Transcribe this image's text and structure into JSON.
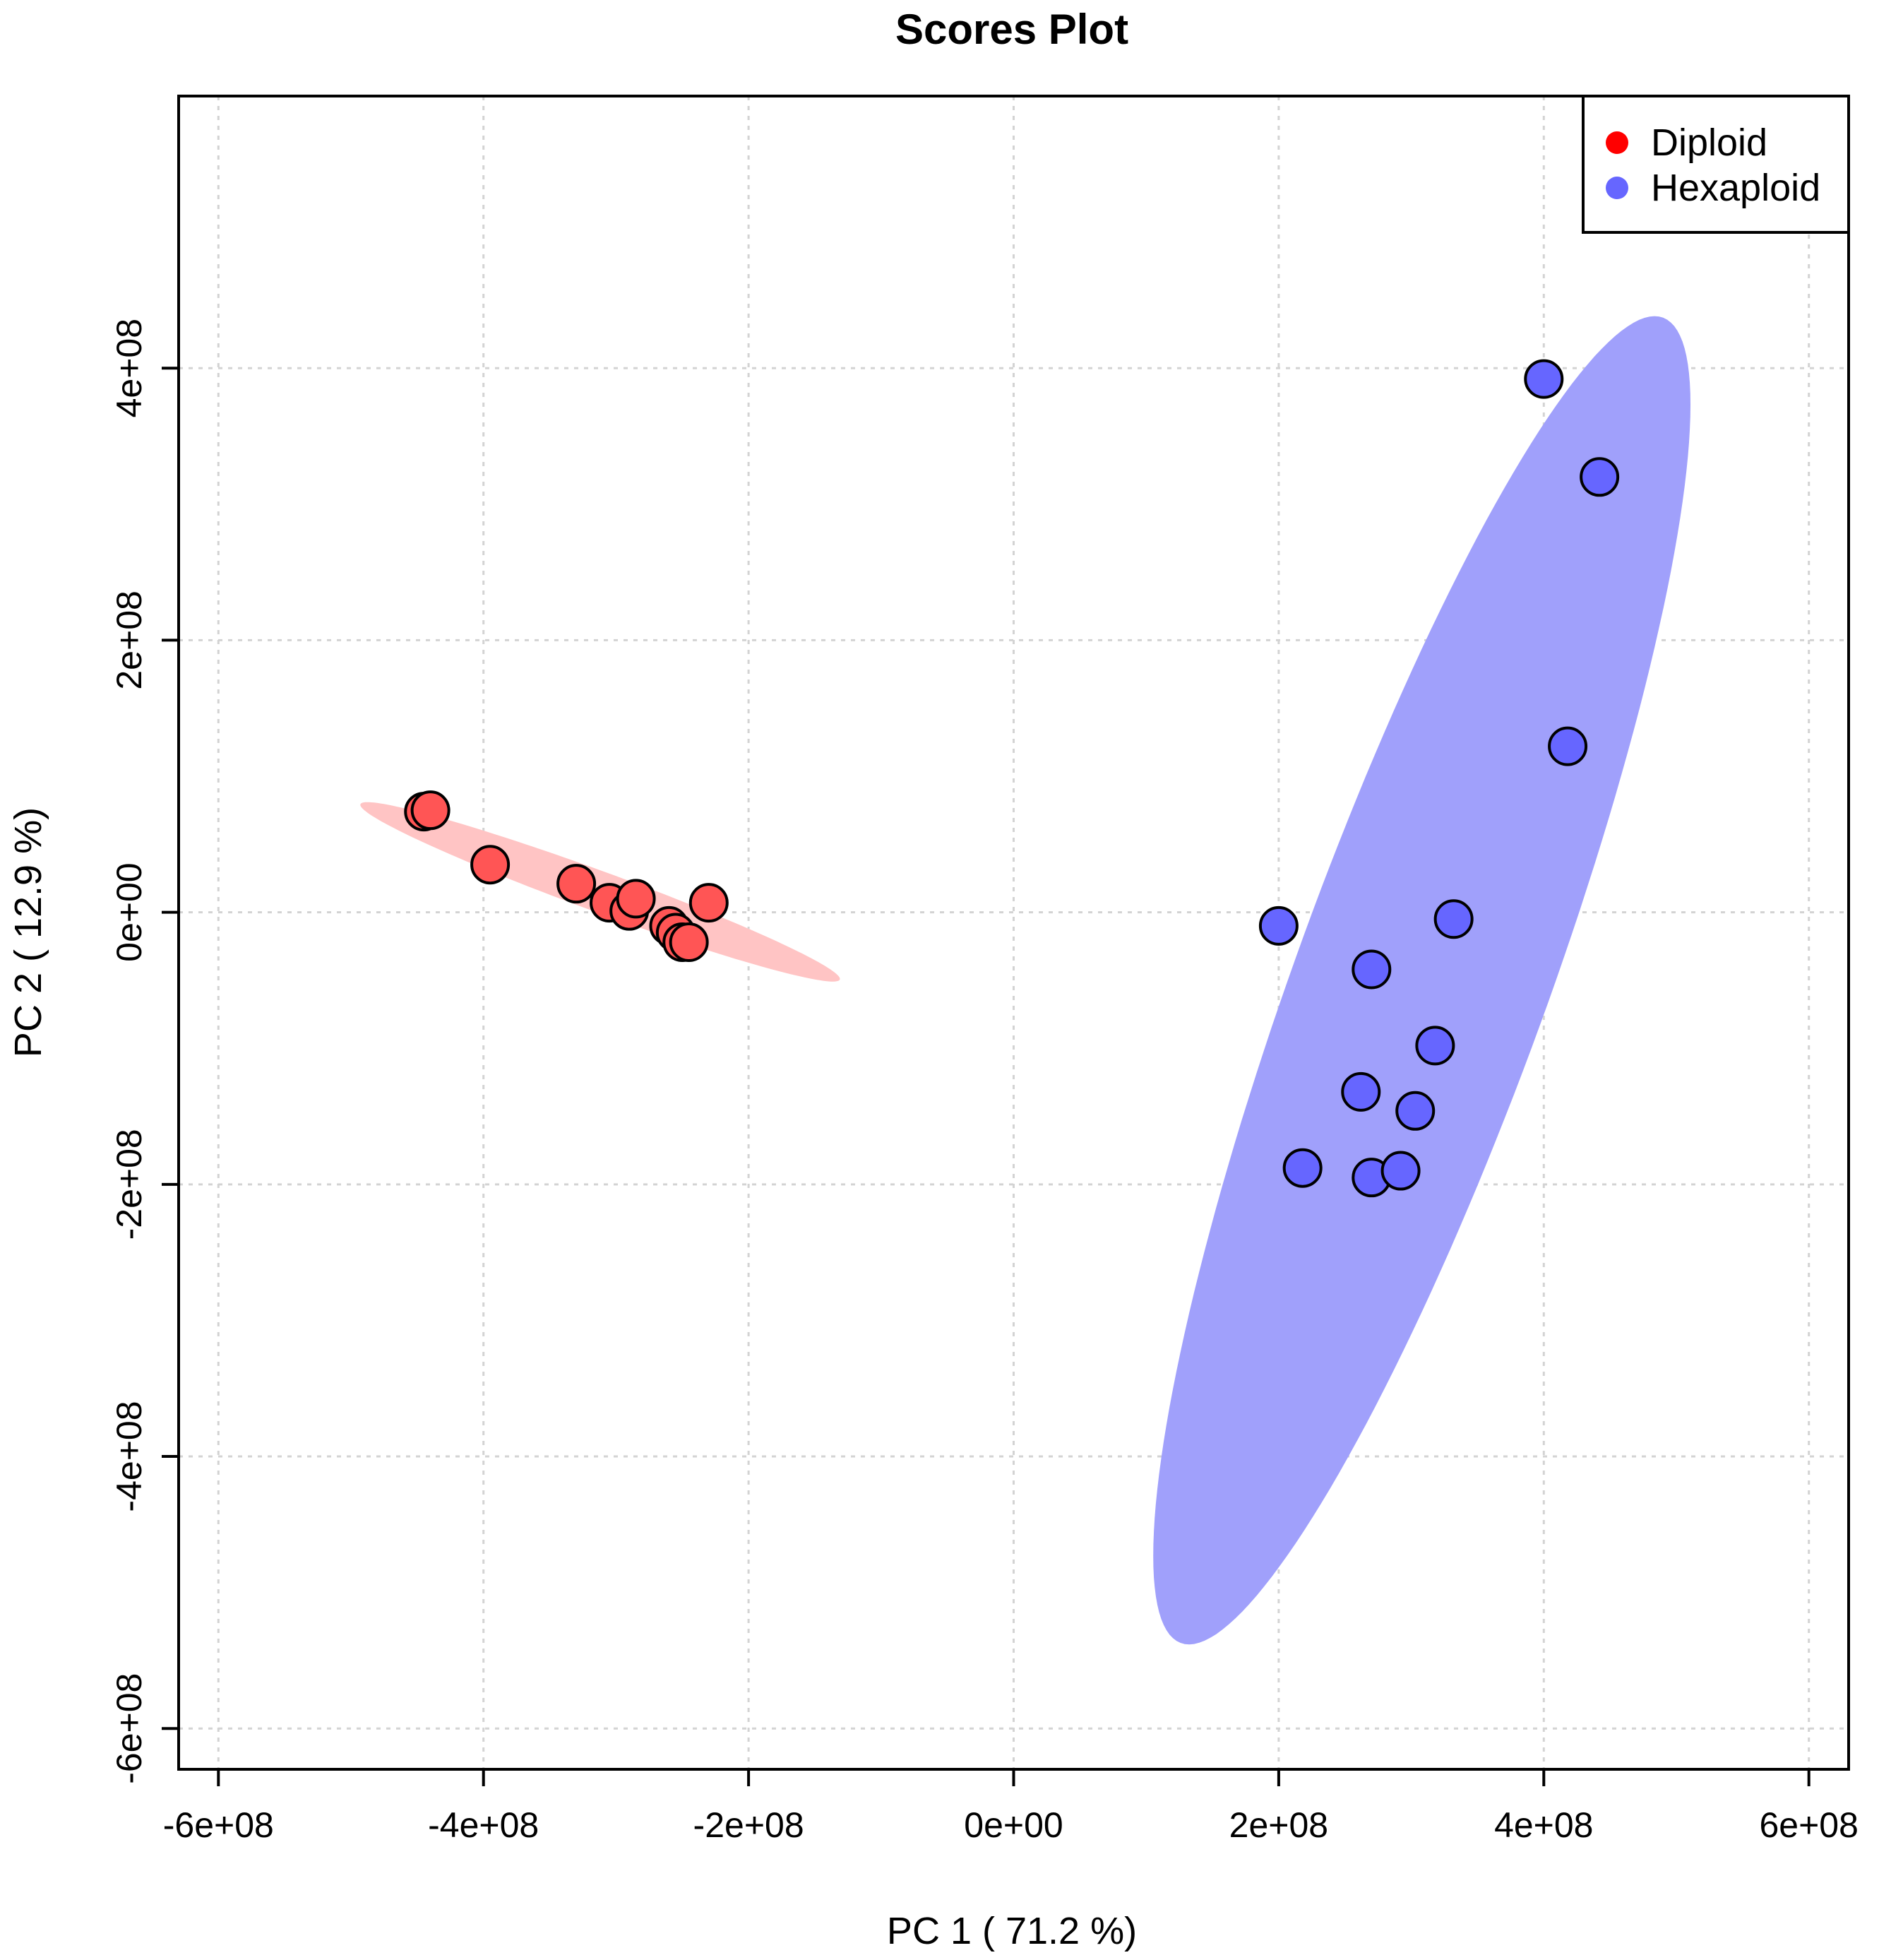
{
  "chart_data": {
    "type": "scatter",
    "title": "Scores Plot",
    "xlabel": "PC 1 ( 71.2 %)",
    "ylabel": "PC 2 ( 12.9 %)",
    "xlim": [
      -630000000.0,
      630000000.0
    ],
    "ylim": [
      -630000000.0,
      600000000.0
    ],
    "grid": true,
    "legend_position": "top-right",
    "x_ticks": [
      -600000000.0,
      -400000000.0,
      -200000000.0,
      0,
      200000000.0,
      400000000.0,
      600000000.0
    ],
    "x_tick_labels": [
      "-6e+08",
      "-4e+08",
      "-2e+08",
      "0e+00",
      "2e+08",
      "4e+08",
      "6e+08"
    ],
    "y_ticks": [
      -600000000.0,
      -400000000.0,
      -200000000.0,
      0,
      200000000.0,
      400000000.0
    ],
    "y_tick_labels": [
      "-6e+08",
      "-4e+08",
      "-2e+08",
      "0e+00",
      "2e+08",
      "4e+08"
    ],
    "series": [
      {
        "name": "Diploid",
        "color": "#ff0000",
        "fill": "#ff5555",
        "ellipse_color": "#ffc4c4",
        "points": [
          {
            "x": -445000000.0,
            "y": 74000000.0
          },
          {
            "x": -440000000.0,
            "y": 75000000.0
          },
          {
            "x": -395000000.0,
            "y": 35000000.0
          },
          {
            "x": -330000000.0,
            "y": 21000000.0
          },
          {
            "x": -305000000.0,
            "y": 7000000.0
          },
          {
            "x": -290000000.0,
            "y": 1000000.0
          },
          {
            "x": -285000000.0,
            "y": 10000000.0
          },
          {
            "x": -260000000.0,
            "y": -10000000.0
          },
          {
            "x": -255000000.0,
            "y": -15000000.0
          },
          {
            "x": -250000000.0,
            "y": -22000000.0
          },
          {
            "x": -245000000.0,
            "y": -22000000.0
          },
          {
            "x": -230000000.0,
            "y": 7000000.0
          }
        ],
        "ellipse": {
          "cx": -312000000.0,
          "cy": 15000000.0,
          "rx": 192000000.0,
          "ry": 15000000.0,
          "angle_deg": -19.6
        }
      },
      {
        "name": "Hexaploid",
        "color": "#6666ff",
        "fill": "#6666ff",
        "ellipse_color": "#a0a0fb",
        "points": [
          {
            "x": 400000000.0,
            "y": 392000000.0
          },
          {
            "x": 442000000.0,
            "y": 320000000.0
          },
          {
            "x": 418000000.0,
            "y": 122000000.0
          },
          {
            "x": 200000000.0,
            "y": -10000000.0
          },
          {
            "x": 332000000.0,
            "y": -5000000.0
          },
          {
            "x": 270000000.0,
            "y": -42000000.0
          },
          {
            "x": 318000000.0,
            "y": -98000000.0
          },
          {
            "x": 262000000.0,
            "y": -132000000.0
          },
          {
            "x": 303000000.0,
            "y": -146000000.0
          },
          {
            "x": 218000000.0,
            "y": -188000000.0
          },
          {
            "x": 270000000.0,
            "y": -195000000.0
          },
          {
            "x": 292000000.0,
            "y": -190000000.0
          }
        ],
        "ellipse": {
          "cx": 308000000.0,
          "cy": -50000000.0,
          "rx": 520000000.0,
          "ry": 95000000.0,
          "angle_deg": 69.5
        }
      }
    ]
  }
}
